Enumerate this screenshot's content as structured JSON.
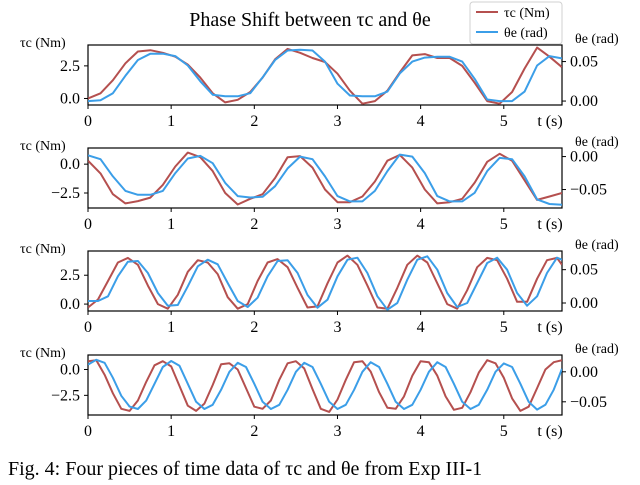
{
  "title": "Phase Shift between τc and θe",
  "legend": {
    "placement": "top-right",
    "entries": [
      "τc (Nm)",
      "θe (rad)"
    ]
  },
  "colors": {
    "tau": "#b5504f",
    "theta": "#3b9ee8"
  },
  "caption": "Fig. 4: Four pieces of time data of τc and θe from Exp III-1",
  "chart_data": [
    {
      "type": "line",
      "xlabel": "t (s)",
      "ylabel_left": "τc (Nm)",
      "ylabel_right": "θe (rad)",
      "xlim": [
        0,
        5.7
      ],
      "xticks": [
        0,
        1,
        2,
        3,
        4,
        5
      ],
      "ylim_left": [
        -0.5,
        4.1
      ],
      "yticks_left": [
        0.0,
        2.5
      ],
      "ylim_right": [
        -0.005,
        0.071
      ],
      "yticks_right": [
        0.0,
        0.05
      ],
      "series": [
        {
          "name": "τc (Nm)",
          "axis": "left",
          "x": [
            0,
            0.15,
            0.3,
            0.45,
            0.6,
            0.75,
            0.9,
            1.05,
            1.2,
            1.35,
            1.5,
            1.65,
            1.8,
            1.95,
            2.1,
            2.25,
            2.4,
            2.55,
            2.7,
            2.85,
            3.0,
            3.15,
            3.3,
            3.45,
            3.6,
            3.75,
            3.9,
            4.05,
            4.2,
            4.35,
            4.5,
            4.65,
            4.8,
            4.95,
            5.1,
            5.25,
            5.4,
            5.55,
            5.7
          ],
          "values": [
            0.0,
            0.4,
            1.4,
            2.7,
            3.6,
            3.7,
            3.5,
            3.2,
            2.6,
            1.6,
            0.4,
            -0.3,
            -0.1,
            0.5,
            1.6,
            3.0,
            3.8,
            3.5,
            3.1,
            2.8,
            1.9,
            0.6,
            -0.4,
            -0.2,
            0.6,
            2.0,
            3.3,
            3.4,
            3.1,
            3.1,
            2.5,
            1.2,
            -0.2,
            -0.4,
            0.5,
            2.3,
            3.9,
            3.2,
            2.4
          ]
        },
        {
          "name": "θe (rad)",
          "axis": "right",
          "x": [
            0,
            0.15,
            0.3,
            0.45,
            0.6,
            0.75,
            0.9,
            1.05,
            1.2,
            1.35,
            1.5,
            1.65,
            1.8,
            1.95,
            2.1,
            2.25,
            2.4,
            2.55,
            2.7,
            2.85,
            3.0,
            3.15,
            3.3,
            3.45,
            3.6,
            3.75,
            3.9,
            4.05,
            4.2,
            4.35,
            4.5,
            4.65,
            4.8,
            4.95,
            5.1,
            5.25,
            5.4,
            5.55,
            5.7
          ],
          "values": [
            0.0,
            0.001,
            0.01,
            0.032,
            0.052,
            0.06,
            0.06,
            0.057,
            0.045,
            0.025,
            0.008,
            0.006,
            0.006,
            0.01,
            0.03,
            0.052,
            0.064,
            0.065,
            0.064,
            0.05,
            0.022,
            0.007,
            0.006,
            0.006,
            0.012,
            0.035,
            0.05,
            0.055,
            0.056,
            0.056,
            0.05,
            0.028,
            0.002,
            0.0,
            0.0,
            0.012,
            0.045,
            0.057,
            0.054
          ]
        }
      ]
    },
    {
      "type": "line",
      "xlabel": "t (s)",
      "ylabel_left": "τc (Nm)",
      "ylabel_right": "θe (rad)",
      "xlim": [
        0,
        5.7
      ],
      "xticks": [
        0,
        1,
        2,
        3,
        4,
        5
      ],
      "ylim_left": [
        -3.8,
        1.4
      ],
      "yticks_left": [
        -2.5,
        0.0
      ],
      "ylim_right": [
        -0.078,
        0.013
      ],
      "yticks_right": [
        -0.05,
        0.0
      ],
      "series": [
        {
          "name": "τc (Nm)",
          "axis": "left",
          "x": [
            0,
            0.15,
            0.3,
            0.45,
            0.6,
            0.75,
            0.9,
            1.05,
            1.2,
            1.35,
            1.5,
            1.65,
            1.8,
            1.95,
            2.1,
            2.25,
            2.4,
            2.55,
            2.7,
            2.85,
            3.0,
            3.15,
            3.3,
            3.45,
            3.6,
            3.75,
            3.9,
            4.05,
            4.2,
            4.35,
            4.5,
            4.65,
            4.8,
            4.95,
            5.1,
            5.25,
            5.4,
            5.55,
            5.7
          ],
          "values": [
            0.3,
            -0.8,
            -2.6,
            -3.4,
            -3.2,
            -2.9,
            -1.8,
            -0.2,
            1.0,
            0.6,
            -0.6,
            -2.5,
            -3.5,
            -3.0,
            -2.6,
            -1.2,
            0.6,
            0.7,
            -0.3,
            -2.2,
            -3.3,
            -3.3,
            -2.8,
            -1.5,
            0.3,
            0.8,
            -0.3,
            -2.2,
            -3.4,
            -3.3,
            -3.0,
            -1.6,
            0.2,
            0.9,
            0.3,
            -1.4,
            -3.1,
            -2.8,
            -2.5
          ]
        },
        {
          "name": "θe (rad)",
          "axis": "right",
          "x": [
            0,
            0.15,
            0.3,
            0.45,
            0.6,
            0.75,
            0.9,
            1.05,
            1.2,
            1.35,
            1.5,
            1.65,
            1.8,
            1.95,
            2.1,
            2.25,
            2.4,
            2.55,
            2.7,
            2.85,
            3.0,
            3.15,
            3.3,
            3.45,
            3.6,
            3.75,
            3.9,
            4.05,
            4.2,
            4.35,
            4.5,
            4.65,
            4.8,
            4.95,
            5.1,
            5.25,
            5.4,
            5.55,
            5.7
          ],
          "values": [
            0.002,
            -0.004,
            -0.03,
            -0.052,
            -0.058,
            -0.058,
            -0.052,
            -0.025,
            -0.003,
            0.001,
            -0.01,
            -0.04,
            -0.06,
            -0.062,
            -0.061,
            -0.045,
            -0.018,
            0.0,
            -0.004,
            -0.03,
            -0.06,
            -0.068,
            -0.068,
            -0.052,
            -0.022,
            0.003,
            0.0,
            -0.025,
            -0.06,
            -0.068,
            -0.068,
            -0.055,
            -0.022,
            -0.002,
            -0.004,
            -0.03,
            -0.065,
            -0.072,
            -0.073
          ]
        }
      ]
    },
    {
      "type": "line",
      "xlabel": "t (s)",
      "ylabel_left": "τc (Nm)",
      "ylabel_right": "θe (rad)",
      "xlim": [
        0,
        5.7
      ],
      "xticks": [
        0,
        1,
        2,
        3,
        4,
        5
      ],
      "ylim_left": [
        -0.6,
        4.6
      ],
      "yticks_left": [
        0.0,
        2.5
      ],
      "ylim_right": [
        -0.012,
        0.078
      ],
      "yticks_right": [
        0.0,
        0.05
      ],
      "series": [
        {
          "name": "τc (Nm)",
          "axis": "left",
          "x": [
            0,
            0.12,
            0.24,
            0.36,
            0.48,
            0.6,
            0.72,
            0.84,
            0.96,
            1.08,
            1.2,
            1.32,
            1.44,
            1.56,
            1.68,
            1.8,
            1.92,
            2.04,
            2.16,
            2.28,
            2.4,
            2.52,
            2.64,
            2.76,
            2.88,
            3.0,
            3.12,
            3.24,
            3.36,
            3.48,
            3.6,
            3.72,
            3.84,
            3.96,
            4.08,
            4.2,
            4.32,
            4.44,
            4.56,
            4.68,
            4.8,
            4.92,
            5.04,
            5.16,
            5.28,
            5.4,
            5.52,
            5.64,
            5.7
          ],
          "values": [
            -0.3,
            0.4,
            2.0,
            3.6,
            4.0,
            3.4,
            1.6,
            0.0,
            -0.4,
            0.8,
            2.8,
            3.8,
            3.6,
            2.6,
            0.6,
            -0.4,
            0.0,
            2.0,
            3.6,
            3.9,
            3.2,
            1.4,
            -0.3,
            -0.2,
            1.8,
            3.6,
            4.2,
            3.4,
            1.6,
            -0.3,
            -0.4,
            1.4,
            3.4,
            4.2,
            3.6,
            1.8,
            0.0,
            -0.4,
            1.2,
            3.2,
            4.0,
            3.8,
            2.2,
            0.2,
            0.2,
            2.2,
            3.8,
            4.0,
            3.4
          ]
        },
        {
          "name": "θe (rad)",
          "axis": "right",
          "x": [
            0,
            0.12,
            0.24,
            0.36,
            0.48,
            0.6,
            0.72,
            0.84,
            0.96,
            1.08,
            1.2,
            1.32,
            1.44,
            1.56,
            1.68,
            1.8,
            1.92,
            2.04,
            2.16,
            2.28,
            2.4,
            2.52,
            2.64,
            2.76,
            2.88,
            3.0,
            3.12,
            3.24,
            3.36,
            3.48,
            3.6,
            3.72,
            3.84,
            3.96,
            4.08,
            4.2,
            4.32,
            4.44,
            4.56,
            4.68,
            4.8,
            4.92,
            5.04,
            5.16,
            5.28,
            5.4,
            5.52,
            5.64,
            5.7
          ],
          "values": [
            0.003,
            0.003,
            0.01,
            0.04,
            0.062,
            0.063,
            0.045,
            0.015,
            -0.004,
            -0.003,
            0.025,
            0.055,
            0.065,
            0.058,
            0.03,
            0.003,
            -0.006,
            0.008,
            0.04,
            0.063,
            0.064,
            0.045,
            0.012,
            -0.007,
            0.005,
            0.04,
            0.065,
            0.068,
            0.045,
            0.01,
            -0.01,
            0.0,
            0.035,
            0.065,
            0.07,
            0.05,
            0.015,
            -0.006,
            0.0,
            0.03,
            0.06,
            0.068,
            0.05,
            0.015,
            -0.004,
            0.01,
            0.045,
            0.068,
            0.065
          ]
        }
      ]
    },
    {
      "type": "line",
      "xlabel": "t (s)",
      "ylabel_left": "τc (Nm)",
      "ylabel_right": "θe (rad)",
      "xlim": [
        0,
        5.7
      ],
      "xticks": [
        0,
        1,
        2,
        3,
        4,
        5
      ],
      "ylim_left": [
        -4.4,
        1.4
      ],
      "yticks_left": [
        -2.5,
        0.0
      ],
      "ylim_right": [
        -0.072,
        0.028
      ],
      "yticks_right": [
        -0.05,
        0.0
      ],
      "series": [
        {
          "name": "τc (Nm)",
          "axis": "left",
          "x": [
            0,
            0.1,
            0.2,
            0.3,
            0.4,
            0.5,
            0.6,
            0.7,
            0.8,
            0.9,
            1.0,
            1.1,
            1.2,
            1.3,
            1.4,
            1.5,
            1.6,
            1.7,
            1.8,
            1.9,
            2.0,
            2.1,
            2.2,
            2.3,
            2.4,
            2.5,
            2.6,
            2.7,
            2.8,
            2.9,
            3.0,
            3.1,
            3.2,
            3.3,
            3.4,
            3.5,
            3.6,
            3.7,
            3.8,
            3.9,
            4.0,
            4.1,
            4.2,
            4.3,
            4.4,
            4.5,
            4.6,
            4.7,
            4.8,
            4.9,
            5.0,
            5.1,
            5.2,
            5.3,
            5.4,
            5.5,
            5.6,
            5.7
          ],
          "values": [
            0.8,
            0.9,
            -0.5,
            -2.3,
            -3.8,
            -4.0,
            -3.0,
            -1.2,
            0.4,
            0.8,
            0.3,
            -1.6,
            -3.5,
            -4.0,
            -3.3,
            -1.5,
            0.5,
            0.6,
            0.0,
            -1.8,
            -3.6,
            -3.8,
            -3.0,
            -1.0,
            0.6,
            0.8,
            0.1,
            -1.9,
            -3.8,
            -4.1,
            -2.9,
            -1.0,
            0.7,
            0.8,
            -0.2,
            -2.2,
            -3.7,
            -3.8,
            -2.6,
            -0.6,
            0.8,
            0.7,
            -0.6,
            -2.6,
            -3.9,
            -3.7,
            -2.2,
            -0.3,
            0.9,
            0.6,
            -0.8,
            -2.8,
            -4.0,
            -3.6,
            -1.8,
            0.0,
            0.7,
            0.9
          ]
        },
        {
          "name": "θe (rad)",
          "axis": "right",
          "x": [
            0,
            0.1,
            0.2,
            0.3,
            0.4,
            0.5,
            0.6,
            0.7,
            0.8,
            0.9,
            1.0,
            1.1,
            1.2,
            1.3,
            1.4,
            1.5,
            1.6,
            1.7,
            1.8,
            1.9,
            2.0,
            2.1,
            2.2,
            2.3,
            2.4,
            2.5,
            2.6,
            2.7,
            2.8,
            2.9,
            3.0,
            3.1,
            3.2,
            3.3,
            3.4,
            3.5,
            3.6,
            3.7,
            3.8,
            3.9,
            4.0,
            4.1,
            4.2,
            4.3,
            4.4,
            4.5,
            4.6,
            4.7,
            4.8,
            4.9,
            5.0,
            5.1,
            5.2,
            5.3,
            5.4,
            5.5,
            5.6,
            5.7
          ],
          "values": [
            0.012,
            0.02,
            0.015,
            -0.01,
            -0.04,
            -0.058,
            -0.062,
            -0.048,
            -0.02,
            0.008,
            0.018,
            0.01,
            -0.02,
            -0.05,
            -0.062,
            -0.055,
            -0.03,
            0.0,
            0.015,
            0.008,
            -0.02,
            -0.05,
            -0.062,
            -0.055,
            -0.03,
            0.0,
            0.015,
            0.008,
            -0.02,
            -0.05,
            -0.062,
            -0.055,
            -0.03,
            0.0,
            0.016,
            0.008,
            -0.02,
            -0.05,
            -0.062,
            -0.055,
            -0.03,
            0.0,
            0.016,
            0.008,
            -0.02,
            -0.05,
            -0.062,
            -0.055,
            -0.03,
            0.0,
            0.014,
            0.008,
            -0.02,
            -0.05,
            -0.063,
            -0.055,
            -0.03,
            0.005
          ]
        }
      ]
    }
  ]
}
